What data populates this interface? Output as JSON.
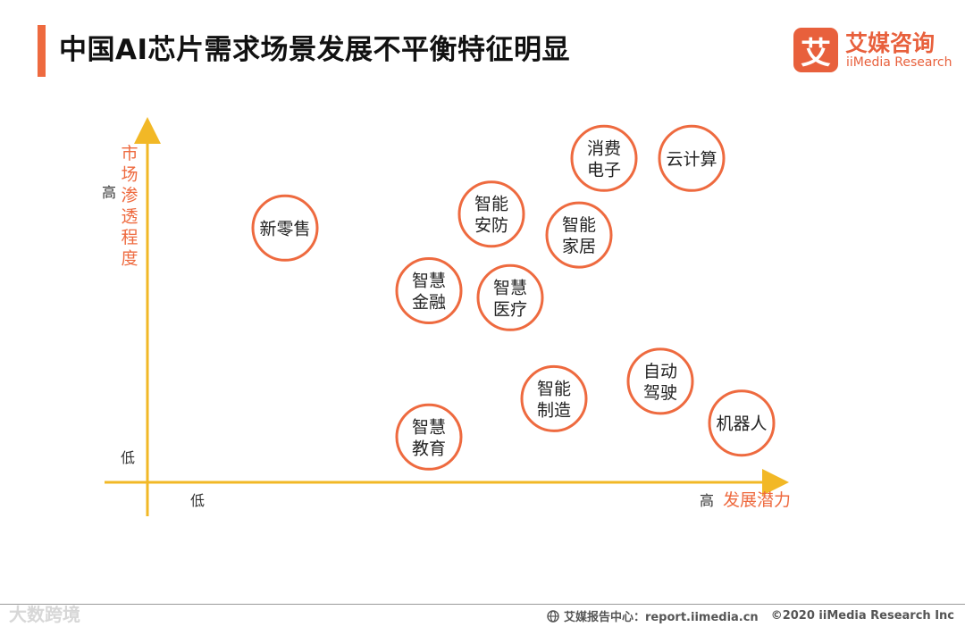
{
  "page": {
    "title": "中国AI芯片需求场景发展不平衡特征明显",
    "accent_color": "#EE6A3F"
  },
  "logo": {
    "icon_char": "艾",
    "name_cn": "艾媒咨询",
    "name_en": "iiMedia Research"
  },
  "footer": {
    "source_label": "艾媒报告中心：report.iimedia.cn",
    "copyright": "©2020  iiMedia Research  Inc",
    "watermark": "大数跨境"
  },
  "chart_data": {
    "type": "scatter",
    "title": "",
    "xlabel": "发展潜力",
    "ylabel": "市场渗透程度",
    "x_low_label": "低",
    "x_high_label": "高",
    "y_low_label": "低",
    "y_high_label": "高",
    "xlim": [
      0,
      1
    ],
    "ylim": [
      0,
      1
    ],
    "grid": false,
    "legend": "none",
    "axis_color": "#F2B826",
    "label_color": "#EE6A3F",
    "bubble_color": "#EE6A3F",
    "points": [
      {
        "label": [
          "新零售"
        ],
        "x": 0.22,
        "y": 0.73
      },
      {
        "label": [
          "消费",
          "电子"
        ],
        "x": 0.73,
        "y": 0.93
      },
      {
        "label": [
          "云计算"
        ],
        "x": 0.87,
        "y": 0.93
      },
      {
        "label": [
          "智能",
          "安防"
        ],
        "x": 0.55,
        "y": 0.77
      },
      {
        "label": [
          "智能",
          "家居"
        ],
        "x": 0.69,
        "y": 0.71
      },
      {
        "label": [
          "智慧",
          "金融"
        ],
        "x": 0.45,
        "y": 0.55
      },
      {
        "label": [
          "智慧",
          "医疗"
        ],
        "x": 0.58,
        "y": 0.53
      },
      {
        "label": [
          "自动",
          "驾驶"
        ],
        "x": 0.82,
        "y": 0.29
      },
      {
        "label": [
          "智能",
          "制造"
        ],
        "x": 0.65,
        "y": 0.24
      },
      {
        "label": [
          "机器人"
        ],
        "x": 0.95,
        "y": 0.17
      },
      {
        "label": [
          "智慧",
          "教育"
        ],
        "x": 0.45,
        "y": 0.13
      }
    ]
  }
}
